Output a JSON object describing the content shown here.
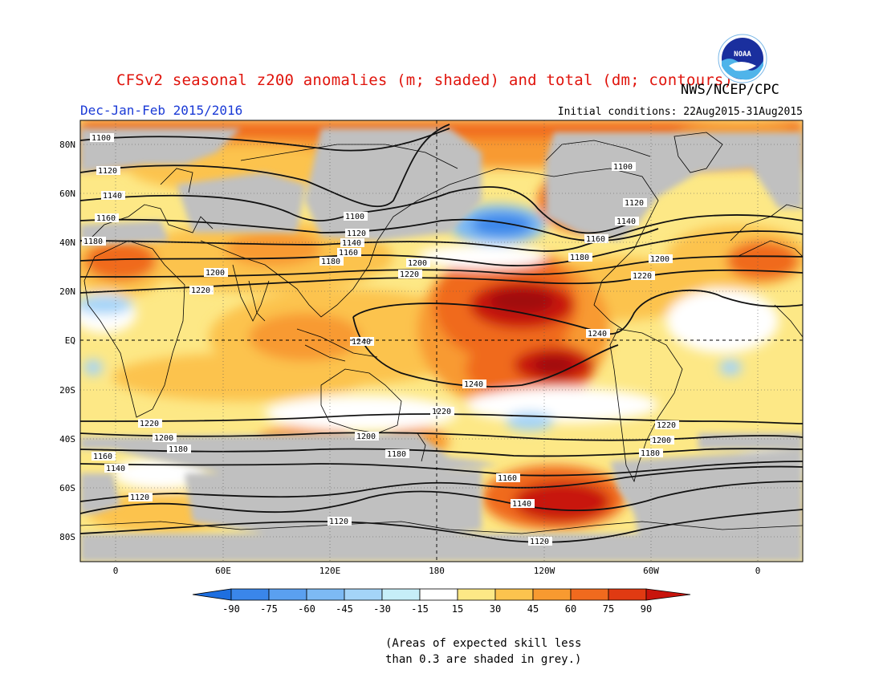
{
  "title": "CFSv2 seasonal z200 anomalies (m; shaded) and total (dm; contours)",
  "agency": "NWS/NCEP/CPC",
  "logo_text": "NOAA",
  "season": "Dec-Jan-Feb 2015/2016",
  "initial_conditions": "Initial conditions: 22Aug2015-31Aug2015",
  "map": {
    "lat_labels": [
      "80N",
      "60N",
      "40N",
      "20N",
      "EQ",
      "20S",
      "40S",
      "60S",
      "80S"
    ],
    "lon_labels": [
      "0",
      "60E",
      "120E",
      "180",
      "120W",
      "60W",
      "0"
    ],
    "contour_labels": [
      "1100",
      "1120",
      "1140",
      "1160",
      "1180",
      "1200",
      "1220",
      "1240"
    ],
    "colors": {
      "grey_skill": "#c0c0c0",
      "ocean": "#ffffff",
      "coast": "#000000"
    }
  },
  "colorbar": {
    "ticks": [
      "-90",
      "-75",
      "-60",
      "-45",
      "-30",
      "-15",
      "15",
      "30",
      "45",
      "60",
      "75",
      "90"
    ],
    "colors": [
      "#1e6fe0",
      "#3a86ea",
      "#5aa0f0",
      "#7dbaf4",
      "#a4d4f8",
      "#c6eef8",
      "#ffffff",
      "#fde886",
      "#fcc34e",
      "#f89a30",
      "#f06a1e",
      "#e03a12",
      "#c8140c",
      "#a00808"
    ]
  },
  "note": {
    "line1": "(Areas of expected skill less",
    "line2": "than 0.3 are shaded in grey.)"
  }
}
